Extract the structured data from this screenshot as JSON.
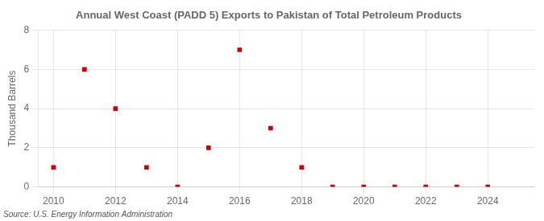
{
  "chart_data": {
    "type": "scatter",
    "title": "Annual West Coast (PADD 5) Exports to Pakistan of Total Petroleum Products",
    "ylabel": "Thousand Barrels",
    "source": "Source: U.S. Energy Information Administration",
    "x": [
      2010,
      2011,
      2012,
      2013,
      2014,
      2015,
      2016,
      2017,
      2018,
      2019,
      2020,
      2021,
      2022,
      2023,
      2024
    ],
    "values": [
      1,
      6,
      4,
      1,
      0,
      2,
      7,
      3,
      1,
      0,
      0,
      0,
      0,
      0,
      0
    ],
    "color": "#cc0000",
    "marker": "square",
    "xlim": [
      2009.5,
      2025.5
    ],
    "ylim": [
      0,
      8
    ],
    "xticks": [
      2010,
      2012,
      2014,
      2016,
      2018,
      2020,
      2022,
      2024
    ],
    "yticks": [
      0,
      2,
      4,
      6,
      8
    ],
    "grid": true
  }
}
